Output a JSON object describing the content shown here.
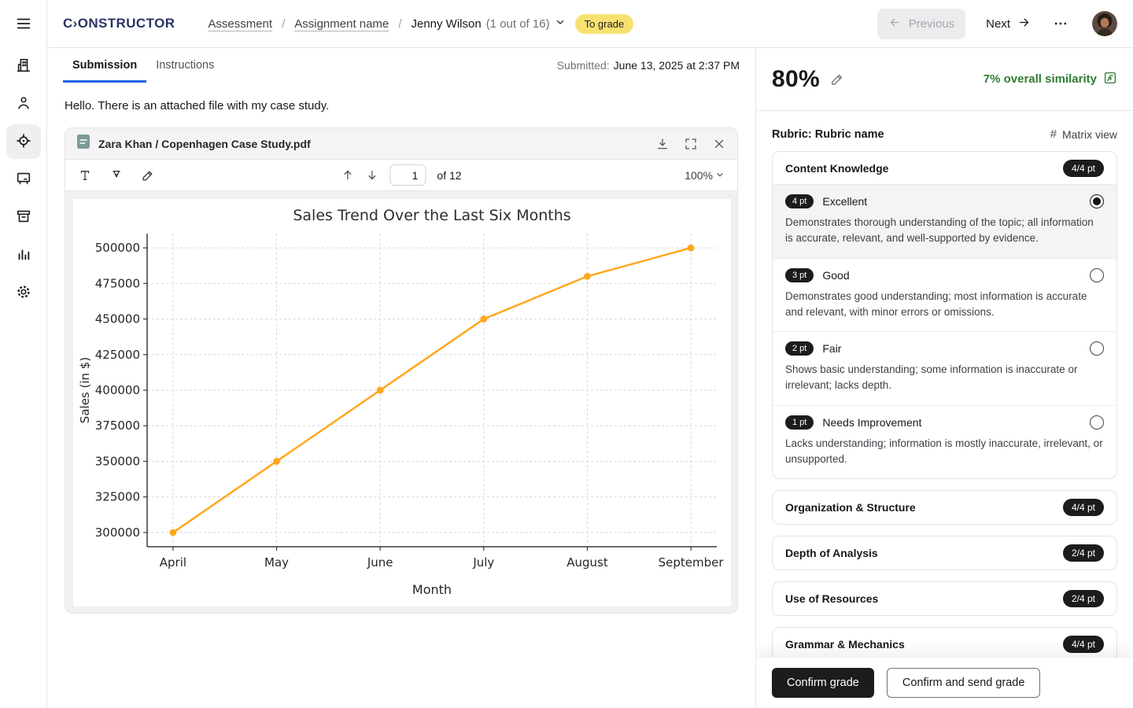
{
  "header": {
    "logo": "C›ONSTRUCTOR",
    "breadcrumb": [
      {
        "label": "Assessment"
      },
      {
        "label": "Assignment name"
      }
    ],
    "student_name": "Jenny Wilson",
    "student_progress": "(1 out of 16)",
    "status_badge": "To grade",
    "previous_label": "Previous",
    "next_label": "Next"
  },
  "sidebar": {
    "items": [
      "organization",
      "people",
      "grading-focus",
      "whiteboard",
      "archive",
      "analytics",
      "settings"
    ],
    "active_item": "grading-focus"
  },
  "tabs": {
    "submission": "Submission",
    "instructions": "Instructions"
  },
  "submission": {
    "submitted_label": "Submitted:",
    "submitted_value": "June 13, 2025 at 2:37 PM",
    "message": "Hello. There is an attached file with my case study."
  },
  "pdf_viewer": {
    "filename": "Zara Khan / Copenhagen Case Study.pdf",
    "page_value": "1",
    "page_total_label": "of 12",
    "zoom_level": "100%"
  },
  "chart_data": {
    "type": "line",
    "title": "Sales Trend Over the Last Six Months",
    "xlabel": "Month",
    "ylabel": "Sales (in $)",
    "categories": [
      "April",
      "May",
      "June",
      "July",
      "August",
      "September"
    ],
    "series": [
      {
        "name": "Sales",
        "values": [
          300000,
          350000,
          400000,
          450000,
          480000,
          500000
        ]
      }
    ],
    "yticks": [
      300000,
      325000,
      350000,
      375000,
      400000,
      425000,
      450000,
      475000,
      500000
    ],
    "ylim": [
      290000,
      510000
    ],
    "grid": true,
    "grid_style": "dashed",
    "legend": "none",
    "line_color": "#FFA71C",
    "marker": "circle"
  },
  "grading": {
    "score": "80%",
    "similarity": "7% overall similarity"
  },
  "rubric": {
    "title": "Rubric: Rubric name",
    "matrix_view_label": "Matrix view",
    "criteria": [
      {
        "name": "Content Knowledge",
        "points": "4/4 pt",
        "expanded": true,
        "levels": [
          {
            "pt": "4 pt",
            "label": "Excellent",
            "selected": true,
            "description": "Demonstrates thorough understanding of the topic; all information is accurate, relevant, and well-supported by evidence."
          },
          {
            "pt": "3 pt",
            "label": "Good",
            "selected": false,
            "description": "Demonstrates good understanding; most information is accurate and relevant, with minor errors or omissions."
          },
          {
            "pt": "2 pt",
            "label": "Fair",
            "selected": false,
            "description": "Shows basic understanding; some information is inaccurate or irrelevant; lacks depth."
          },
          {
            "pt": "1 pt",
            "label": "Needs Improvement",
            "selected": false,
            "description": "Lacks understanding; information is mostly inaccurate, irrelevant, or unsupported."
          }
        ]
      },
      {
        "name": "Organization & Structure",
        "points": "4/4 pt",
        "expanded": false
      },
      {
        "name": "Depth of Analysis",
        "points": "2/4 pt",
        "expanded": false
      },
      {
        "name": "Use of Resources",
        "points": "2/4 pt",
        "expanded": false
      },
      {
        "name": "Grammar & Mechanics",
        "points": "4/4 pt",
        "expanded": false
      }
    ]
  },
  "actions": {
    "confirm": "Confirm grade",
    "confirm_send": "Confirm and send grade"
  },
  "colors": {
    "accent_blue": "#2264E5",
    "badge_yellow": "#F7E170",
    "similarity_green": "#2E7D32",
    "chart_orange": "#FFA71C",
    "logo_navy": "#2A3364"
  }
}
